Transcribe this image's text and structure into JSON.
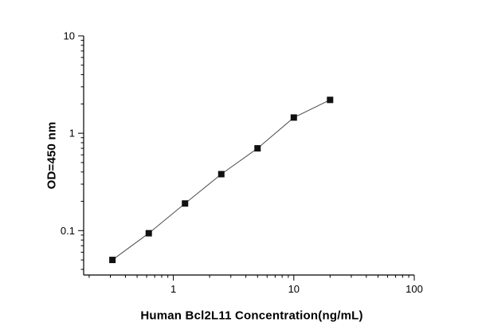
{
  "chart_data": {
    "type": "line",
    "title": "",
    "xlabel": "Human Bcl2L11 Concentration(ng/mL)",
    "ylabel": "OD=450 nm",
    "xscale": "log",
    "yscale": "log",
    "x": [
      0.312,
      0.625,
      1.25,
      2.5,
      5,
      10,
      20
    ],
    "y": [
      0.05,
      0.094,
      0.19,
      0.38,
      0.7,
      1.45,
      2.2
    ],
    "xlim": [
      0.18,
      100
    ],
    "ylim": [
      0.035,
      10
    ],
    "x_ticks": [
      1,
      10,
      100
    ],
    "x_tick_labels": [
      "1",
      "10",
      "100"
    ],
    "y_ticks": [
      0.1,
      1,
      10
    ],
    "y_tick_labels": [
      "0.1",
      "1",
      "10"
    ],
    "grid": false,
    "legend": null,
    "marker": "square",
    "marker_color": "#111111",
    "line_color": "#4d4d4d",
    "axis_color": "#000000"
  }
}
